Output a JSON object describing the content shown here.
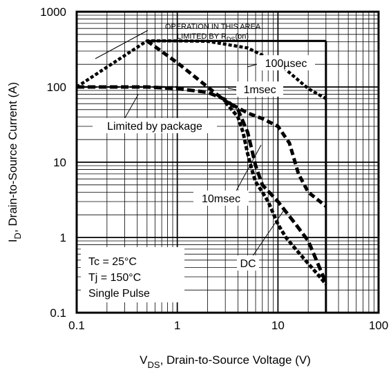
{
  "chart_data": {
    "type": "line",
    "xscale": "log",
    "yscale": "log",
    "xlim": [
      0.1,
      100
    ],
    "ylim": [
      0.1,
      1000
    ],
    "grid": true,
    "x_tick_labels": [
      "0.1",
      "1",
      "10",
      "100"
    ],
    "y_tick_labels": [
      "0.1",
      "1",
      "10",
      "100",
      "1000"
    ],
    "xlabel": {
      "main": "V",
      "sub": "DS",
      "rest": ", Drain-to-Source Voltage (V)"
    },
    "ylabel": {
      "main": "I",
      "sub": "D",
      "rest": ",  Drain-to-Source Current (A)"
    },
    "limits": {
      "current_limit_A": 410,
      "voltage_limit_V": 30
    },
    "series": [
      {
        "name": "100µsec",
        "x": [
          0.1,
          0.5,
          1,
          2,
          5,
          10,
          20,
          30
        ],
        "y": [
          100,
          410,
          410,
          405,
          330,
          210,
          95,
          70
        ]
      },
      {
        "name": "1msec",
        "x": [
          0.5,
          1,
          2,
          3,
          5,
          7,
          10,
          13,
          16,
          20,
          30
        ],
        "y": [
          410,
          210,
          100,
          65,
          45,
          38,
          30,
          18,
          7,
          4,
          2.6
        ]
      },
      {
        "name": "10msec",
        "x": [
          0.1,
          0.5,
          1,
          2,
          3,
          4,
          5,
          6,
          7,
          10,
          15,
          20,
          30
        ],
        "y": [
          100,
          100,
          95,
          85,
          68,
          50,
          25,
          9,
          5,
          3,
          1.5,
          0.9,
          0.25
        ]
      },
      {
        "name": "DC",
        "x": [
          3,
          4,
          4.5,
          5,
          5.5,
          6,
          7,
          8,
          10,
          12,
          15,
          20,
          25,
          30
        ],
        "y": [
          63,
          40,
          25,
          13,
          8,
          5.5,
          4,
          3,
          1.5,
          1,
          0.7,
          0.45,
          0.32,
          0.24
        ]
      },
      {
        "name": "Limited by package",
        "x": [
          0.1,
          1
        ],
        "y": [
          100,
          100
        ]
      }
    ],
    "annotations": {
      "area_line1": "OPERATION IN THIS AREA",
      "area_line2_pre": "LIMITED BY R",
      "area_line2_sub": "DS",
      "area_line2_post": "(on)",
      "package": "Limited by package",
      "us100": "100µsec",
      "ms1": "1msec",
      "ms10": "10msec",
      "dc": "DC"
    },
    "conditions": [
      "Tc = 25°C",
      "Tj = 150°C",
      "Single Pulse"
    ]
  }
}
